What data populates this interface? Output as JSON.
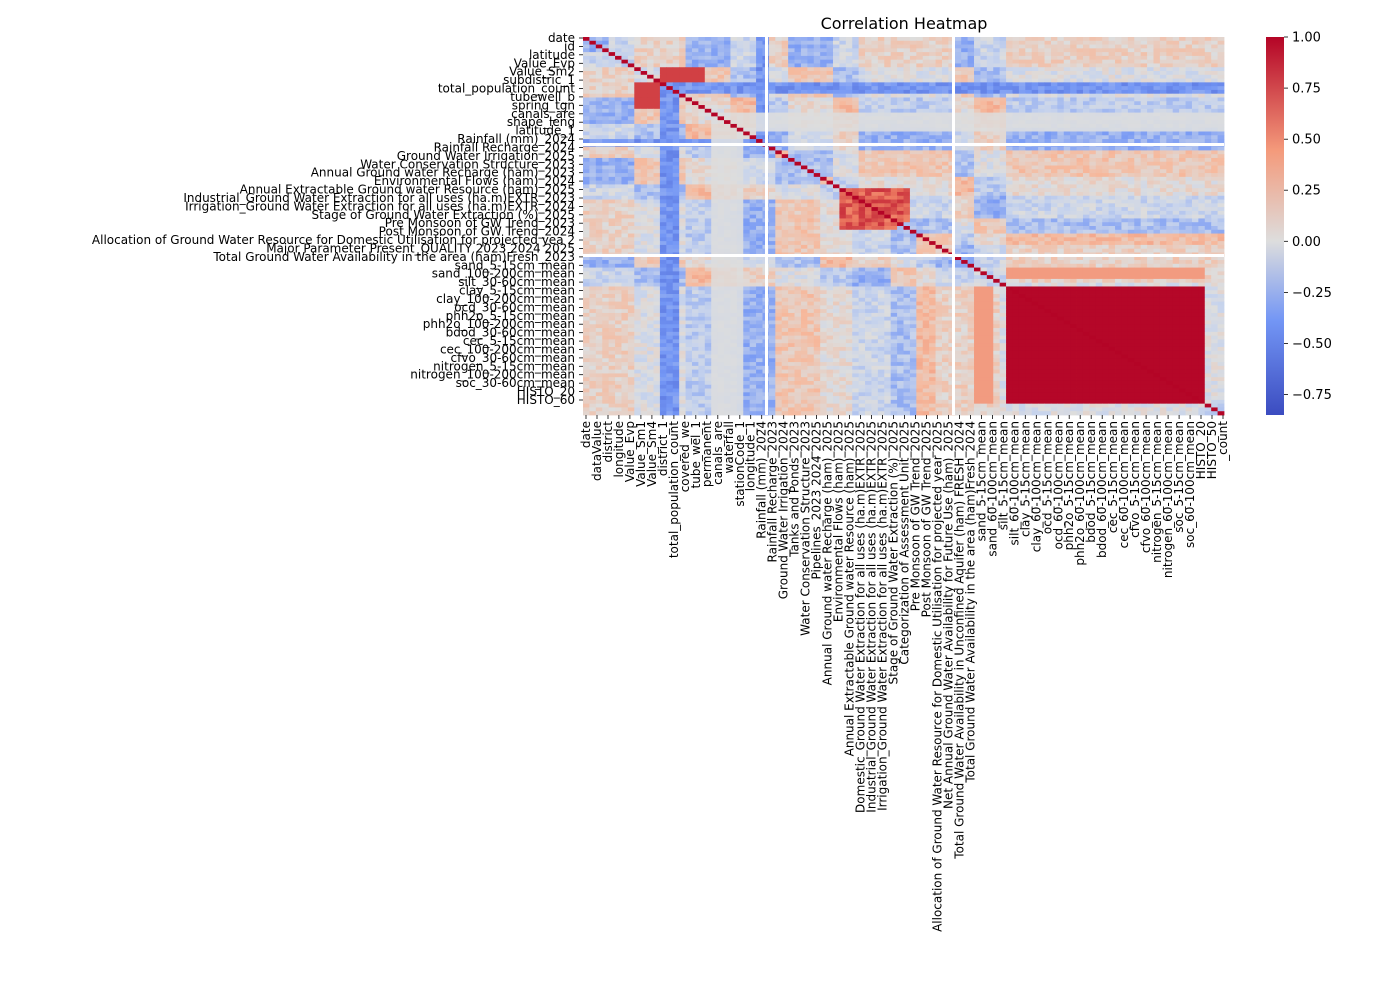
{
  "chart_data": {
    "type": "heatmap",
    "title": "Correlation Heatmap",
    "cmap": "coolwarm",
    "vmin": -0.85,
    "vmax": 1.0,
    "y_tick_labels": [
      "date",
      "id",
      "latitude",
      "Value_Evp",
      "Value_Sm2",
      "subdistric_1",
      "total_population_count",
      "tubewell_b",
      "spring_tgn",
      "canals_are",
      "shape_leng",
      "latitude_1",
      "Rainfall (mm)_2024",
      "Rainfall Recharge_2024",
      "Ground Water Irrigation_2025",
      "Water Conservation Structure_2023",
      "Annual Ground water Recharge (ham)_2023",
      "Environmental Flows (ham)_2024",
      "Annual Extractable Ground water Resource (ham)_2025",
      "Industrial_Ground Water Extraction for all uses (ha.m)EXTR_2023",
      "Irrigation_Ground Water Extraction for all uses (ha.m)EXTR_2024",
      "Stage of Ground Water Extraction (%)_2025",
      "Pre Monsoon of GW Trend_2023",
      "Post Monsoon of GW Trend_2024",
      "Allocation of Ground Water Resource for Domestic Utilisation for projected yea 2",
      "Major Parameter Present_QUALITY 2023 2024 2025",
      "Total Ground Water Availability in the area (ham)Fresh_2023",
      "sand_5-15cm_mean",
      "sand_100-200cm_mean",
      "silt_30-60cm_mean",
      "clay_5-15cm_mean",
      "clay_100-200cm_mean",
      "ocd_30-60cm_mean",
      "phh2o_5-15cm_mean",
      "phh2o_100-200cm_mean",
      "bdod_30-60cm_mean",
      "cec_5-15cm_mean",
      "cec_100-200cm_mean",
      "cfvo_30-60cm_mean",
      "nitrogen_5-15cm_mean",
      "nitrogen_100-200cm_mean",
      "soc_30-60cm_mean",
      "HISTO_20",
      "HISTO_60"
    ],
    "x_tick_labels": [
      "date",
      "dataValue",
      "district",
      "longitude",
      "Value_Evp",
      "Value_Sm1",
      "Value_Sm4",
      "district_1",
      "total_population_count",
      "covered_we",
      "tube_wel_1",
      "permanent",
      "canals_are",
      "waterfall",
      "stationCode_1",
      "longitude_1",
      "Rainfall (mm)_2024",
      "Rainfall Recharge_2023",
      "Ground Water Irrigation_2024",
      "Tanks and Ponds_2023",
      "Water Conservation Structure_2023",
      "Pipelines_2023 2024 2025",
      "Annual Ground water Recharge (ham)_2025",
      "Environmental Flows (ham)_2025",
      "Annual Extractable Ground water Resource (ham)_2025",
      "Domestic_Ground Water Extraction for all uses (ha.m)EXTR_2025",
      "Industrial_Ground Water Extraction for all uses (ha.m)EXTR_2025",
      "Irrigation_Ground Water Extraction for all uses (ha.m)EXTR_2025",
      "Stage of Ground Water Extraction (%)_2025",
      "Categorization of Assessment Unit_2025",
      "Pre Monsoon of GW Trend_2025",
      "Post Monsoon of GW Trend_2025",
      "Allocation of Ground Water Resource for Domestic Utilisation for projected year 2025",
      "Net Annual Ground Water Availability for Future Use (ham)_2025",
      "Total Ground Water Availability in Unconfined Aquifer (ham) FRESH_2024",
      "Total Ground Water Availability in the area (ham)Fresh_2024",
      "sand_5-15cm_mean",
      "sand_60-100cm_mean",
      "silt_5-15cm_mean",
      "silt_60-100cm_mean",
      "clay_5-15cm_mean",
      "clay_60-100cm_mean",
      "ocd_5-15cm_mean",
      "ocd_60-100cm_mean",
      "phh2o_5-15cm_mean",
      "phh2o_60-100cm_mean",
      "bdod_5-15cm_mean",
      "bdod_60-100cm_mean",
      "cec_5-15cm_mean",
      "cec_60-100cm_mean",
      "cfvo_5-15cm_mean",
      "cfvo_60-100cm_mean",
      "nitrogen_5-15cm_mean",
      "nitrogen_60-100cm_mean",
      "soc_5-15cm_mean",
      "soc_60-100cm_mean",
      "HISTO_20",
      "HISTO_50",
      "_count"
    ],
    "colorbar": {
      "ticks": [
        -0.75,
        -0.5,
        -0.25,
        0.0,
        0.25,
        0.5,
        0.75,
        1.0
      ],
      "tick_labels": [
        "−0.75",
        "−0.50",
        "−0.25",
        "0.00",
        "0.25",
        "0.50",
        "0.75",
        "1.00"
      ]
    },
    "legend": "colorbar-right"
  }
}
